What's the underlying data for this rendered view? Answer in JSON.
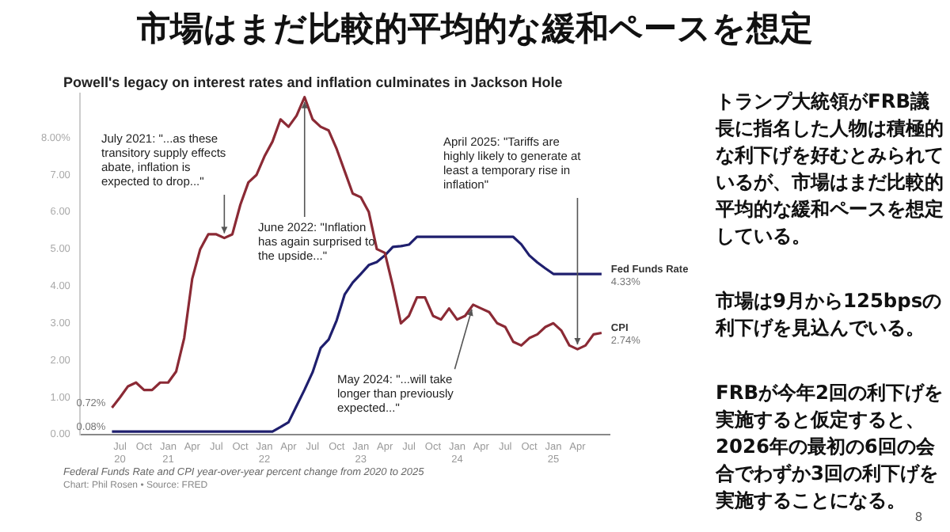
{
  "chart_data": {
    "type": "line",
    "title": "市場はまだ比較的平均的な緩和ペースを想定",
    "subtitle": "Powell's legacy on interest rates and inflation culminates in Jackson Hole",
    "x": [
      "2020-06",
      "2020-07",
      "2020-08",
      "2020-09",
      "2020-10",
      "2020-11",
      "2020-12",
      "2021-01",
      "2021-02",
      "2021-03",
      "2021-04",
      "2021-05",
      "2021-06",
      "2021-07",
      "2021-08",
      "2021-09",
      "2021-10",
      "2021-11",
      "2021-12",
      "2022-01",
      "2022-02",
      "2022-03",
      "2022-04",
      "2022-05",
      "2022-06",
      "2022-07",
      "2022-08",
      "2022-09",
      "2022-10",
      "2022-11",
      "2022-12",
      "2023-01",
      "2023-02",
      "2023-03",
      "2023-04",
      "2023-05",
      "2023-06",
      "2023-07",
      "2023-08",
      "2023-09",
      "2023-10",
      "2023-11",
      "2023-12",
      "2024-01",
      "2024-02",
      "2024-03",
      "2024-04",
      "2024-05",
      "2024-06",
      "2024-07",
      "2024-08",
      "2024-09",
      "2024-10",
      "2024-11",
      "2024-12",
      "2025-01",
      "2025-02",
      "2025-03",
      "2025-04",
      "2025-05",
      "2025-06",
      "2025-07"
    ],
    "series": [
      {
        "name": "CPI",
        "color": "#8b2a35",
        "values": [
          0.72,
          1.0,
          1.3,
          1.4,
          1.2,
          1.2,
          1.4,
          1.4,
          1.7,
          2.6,
          4.2,
          5.0,
          5.4,
          5.4,
          5.3,
          5.4,
          6.2,
          6.8,
          7.0,
          7.5,
          7.9,
          8.5,
          8.3,
          8.6,
          9.1,
          8.5,
          8.3,
          8.2,
          7.7,
          7.1,
          6.5,
          6.4,
          6.0,
          5.0,
          4.9,
          4.0,
          3.0,
          3.2,
          3.7,
          3.7,
          3.2,
          3.1,
          3.4,
          3.1,
          3.2,
          3.5,
          3.4,
          3.3,
          3.0,
          2.9,
          2.5,
          2.4,
          2.6,
          2.7,
          2.9,
          3.0,
          2.8,
          2.4,
          2.3,
          2.4,
          2.7,
          2.74
        ],
        "value_labels": [
          "0.72%",
          null,
          null,
          null,
          null,
          null,
          null,
          null,
          null,
          null,
          null,
          null,
          null,
          null,
          null,
          null,
          null,
          null,
          null,
          null,
          null,
          null,
          null,
          null,
          null,
          null,
          null,
          null,
          null,
          null,
          null,
          null,
          null,
          null,
          null,
          null,
          null,
          null,
          null,
          null,
          null,
          null,
          null,
          null,
          null,
          null,
          null,
          null,
          null,
          null,
          null,
          null,
          null,
          null,
          null,
          null,
          null,
          null,
          null,
          null,
          null,
          "2.74%"
        ]
      },
      {
        "name": "Fed Funds Rate",
        "color": "#1f1f6e",
        "values": [
          0.08,
          0.08,
          0.08,
          0.08,
          0.08,
          0.08,
          0.08,
          0.08,
          0.08,
          0.08,
          0.08,
          0.08,
          0.08,
          0.08,
          0.08,
          0.08,
          0.08,
          0.08,
          0.08,
          0.08,
          0.08,
          0.2,
          0.33,
          0.77,
          1.21,
          1.68,
          2.33,
          2.56,
          3.08,
          3.78,
          4.1,
          4.33,
          4.57,
          4.65,
          4.83,
          5.06,
          5.08,
          5.12,
          5.33,
          5.33,
          5.33,
          5.33,
          5.33,
          5.33,
          5.33,
          5.33,
          5.33,
          5.33,
          5.33,
          5.33,
          5.33,
          5.13,
          4.83,
          4.64,
          4.48,
          4.33,
          4.33,
          4.33,
          4.33,
          4.33,
          4.33,
          4.33
        ],
        "value_labels": [
          "0.08%",
          null,
          null,
          null,
          null,
          null,
          null,
          null,
          null,
          null,
          null,
          null,
          null,
          null,
          null,
          null,
          null,
          null,
          null,
          null,
          null,
          null,
          null,
          null,
          null,
          null,
          null,
          null,
          null,
          null,
          null,
          null,
          null,
          null,
          null,
          null,
          null,
          null,
          null,
          null,
          null,
          null,
          null,
          null,
          null,
          null,
          null,
          null,
          null,
          null,
          null,
          null,
          null,
          null,
          null,
          null,
          null,
          null,
          null,
          null,
          null,
          "4.33%"
        ]
      }
    ],
    "xlim": [
      "2020-02",
      "2025-08"
    ],
    "xticks": [
      {
        "value": "2020-07",
        "label": "Jul 20"
      },
      {
        "value": "2020-10",
        "label": "Oct"
      },
      {
        "value": "2021-01",
        "label": "Jan 21"
      },
      {
        "value": "2021-04",
        "label": "Apr"
      },
      {
        "value": "2021-07",
        "label": "Jul"
      },
      {
        "value": "2021-10",
        "label": "Oct"
      },
      {
        "value": "2022-01",
        "label": "Jan 22"
      },
      {
        "value": "2022-04",
        "label": "Apr"
      },
      {
        "value": "2022-07",
        "label": "Jul"
      },
      {
        "value": "2022-10",
        "label": "Oct"
      },
      {
        "value": "2023-01",
        "label": "Jan 23"
      },
      {
        "value": "2023-04",
        "label": "Apr"
      },
      {
        "value": "2023-07",
        "label": "Jul"
      },
      {
        "value": "2023-10",
        "label": "Oct"
      },
      {
        "value": "2024-01",
        "label": "Jan 24"
      },
      {
        "value": "2024-04",
        "label": "Apr"
      },
      {
        "value": "2024-07",
        "label": "Jul"
      },
      {
        "value": "2024-10",
        "label": "Oct"
      },
      {
        "value": "2025-01",
        "label": "Jan 25"
      },
      {
        "value": "2025-04",
        "label": "Apr"
      }
    ],
    "ylim": [
      0,
      9.2
    ],
    "yticks": [
      {
        "value": 0,
        "label": "0.00"
      },
      {
        "value": 1,
        "label": "1.00"
      },
      {
        "value": 2,
        "label": "2.00"
      },
      {
        "value": 3,
        "label": "3.00"
      },
      {
        "value": 4,
        "label": "4.00"
      },
      {
        "value": 5,
        "label": "5.00"
      },
      {
        "value": 6,
        "label": "6.00"
      },
      {
        "value": 7,
        "label": "7.00"
      },
      {
        "value": 8,
        "label": "8.00%"
      }
    ],
    "grid": false,
    "legend": false,
    "annotations": [
      {
        "text": "July 2021: \"...as these transitory supply effects abate, inflation is expected to drop...\"",
        "x": "2021-08",
        "y": 5.3
      },
      {
        "text": "June 2022: \"Inflation has again surprised to the upside...\"",
        "x": "2022-06",
        "y": 9.1
      },
      {
        "text": "April 2025: \"Tariffs are highly likely to generate at least a temporary rise in inflation\"",
        "x": "2025-04",
        "y": 2.3
      },
      {
        "text": "May 2024: \"...will take longer than previously expected...\"",
        "x": "2024-03",
        "y": 3.5
      },
      "Federal Funds Rate and CPI year-over-year percent change from 2020 to 2025",
      "Chart: Phil Rosen • Source: FRED",
      "トランプ大統領がFRB議長に指名した人物は積極的な利下げを好むとみられているが、市場はまだ比較的平均的な緩和ペースを想定している。",
      "市場は9月から125bpsの利下げを見込んでいる。",
      "FRBが今年2回の利下げを実施すると仮定すると、2026年の最初の6回の会合でわずか3回の利下げを実施することになる。",
      "8"
    ]
  }
}
